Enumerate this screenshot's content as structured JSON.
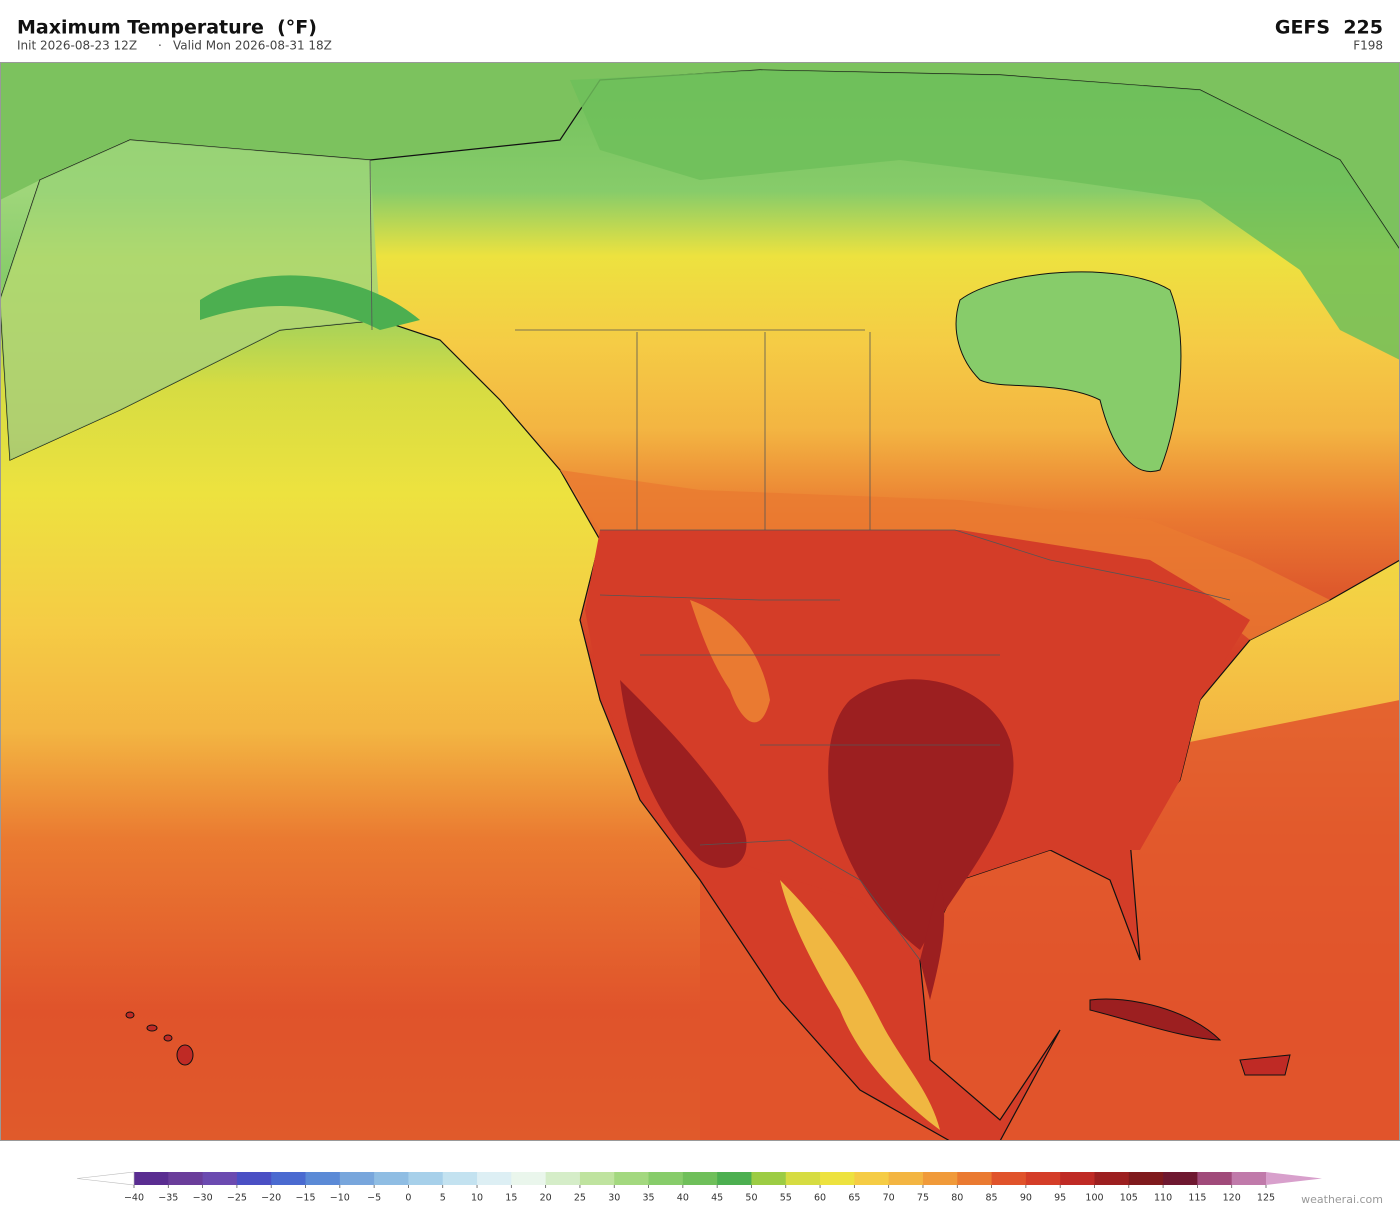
{
  "header": {
    "title": "Maximum Temperature  (°F)",
    "init": "Init 2026-08-23 12Z",
    "separator": "·",
    "valid": "Valid Mon 2026-08-31 18Z",
    "model": "GEFS  225",
    "forecast_hour": "F198"
  },
  "colorbar": {
    "ticks": [
      {
        "value": -40,
        "label": "−40"
      },
      {
        "value": -35,
        "label": "−35"
      },
      {
        "value": -30,
        "label": "−30"
      },
      {
        "value": -25,
        "label": "−25"
      },
      {
        "value": -20,
        "label": "−20"
      },
      {
        "value": -15,
        "label": "−15"
      },
      {
        "value": -10,
        "label": "−10"
      },
      {
        "value": -5,
        "label": "−5"
      },
      0,
      5,
      10,
      15,
      20,
      25,
      30,
      35,
      40,
      45,
      50,
      55,
      60,
      65,
      70,
      75,
      80,
      85,
      90,
      95,
      100,
      105,
      110,
      115,
      120,
      125
    ],
    "colors": [
      "#5a2d91",
      "#6a3d9a",
      "#6b4ab0",
      "#4a4fc4",
      "#4a6ad0",
      "#5b8ad6",
      "#78a6dc",
      "#8fbde3",
      "#a7d0ea",
      "#c3e2f0",
      "#ddeff4",
      "#eaf6ec",
      "#d5edc8",
      "#bfe39f",
      "#a3d87f",
      "#87cc6a",
      "#6fbf5a",
      "#4caf50",
      "#9ccc44",
      "#d6dc42",
      "#ede23f",
      "#f5cc45",
      "#f3b542",
      "#f09a3a",
      "#ea7a31",
      "#e0532b",
      "#d43d28",
      "#bf2a25",
      "#9c1f20",
      "#7f1a1d",
      "#6e1830",
      "#a04a7a",
      "#c07aaa"
    ],
    "under_color": "#ffffff",
    "over_color": "#d8a0cc"
  },
  "footer": {
    "credit": "weatherai.com"
  }
}
